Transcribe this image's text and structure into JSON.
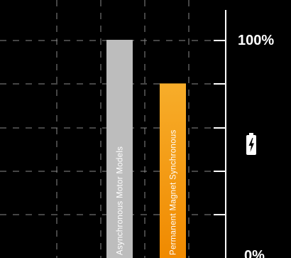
{
  "chart_data": {
    "type": "bar",
    "title": "",
    "xlabel": "",
    "ylabel": "",
    "categories": [
      "Asynchronous Motor Models",
      "Permanent Magnet Synchronous"
    ],
    "values": [
      100,
      80
    ],
    "ylim": [
      0,
      100
    ],
    "y_tick_labels": {
      "top": "100%",
      "bottom": "0%"
    },
    "icon": "battery-charging-icon",
    "grid": true,
    "colors": {
      "background": "#000000",
      "bar_asynchronous": "#bdbdbd",
      "bar_pmsm_top": "#f7ad2a",
      "bar_pmsm_bottom": "#f08a00",
      "grid": "#8a8a8a",
      "axis": "#ffffff",
      "text": "#ffffff"
    }
  }
}
